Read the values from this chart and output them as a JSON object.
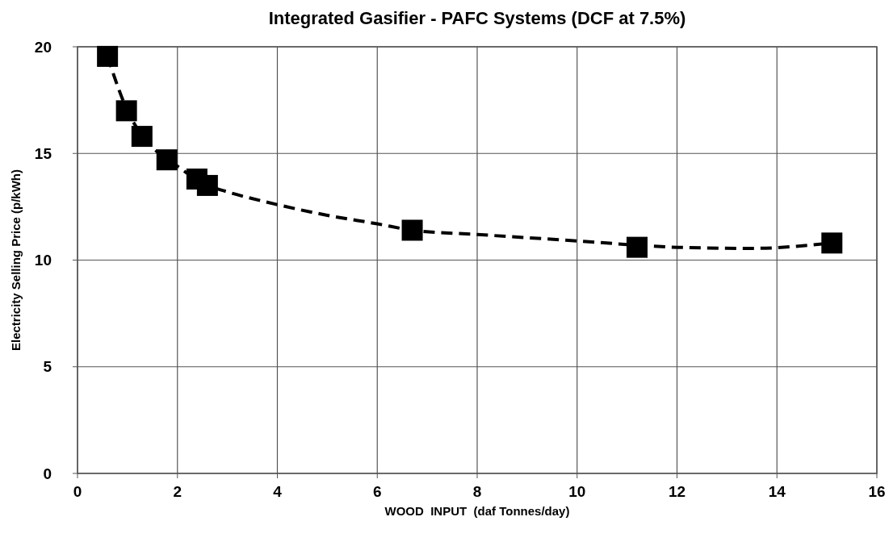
{
  "chart_data": {
    "type": "scatter",
    "title": "Integrated Gasifier - PAFC Systems (DCF at 7.5%)",
    "xlabel": "WOOD  INPUT  (daf Tonnes/day)",
    "ylabel": "Electricity Selling Price (p/kWh)",
    "xlim": [
      0,
      16
    ],
    "xticks": [
      0,
      2,
      4,
      6,
      8,
      10,
      12,
      14,
      16
    ],
    "ylim": [
      0,
      20
    ],
    "yticks": [
      0,
      5,
      10,
      15,
      20
    ],
    "grid": true,
    "series": [
      {
        "type": "line",
        "color": "#000000",
        "line_style": "dashed",
        "marker": "none",
        "x": [
          0.6,
          1.0,
          1.5,
          2.0,
          2.6,
          3.0,
          4.0,
          5.0,
          6.0,
          6.7,
          8.0,
          10.0,
          11.2,
          12.0,
          13.5,
          15.1
        ],
        "values": [
          19.55,
          17.0,
          15.3,
          14.4,
          13.5,
          13.2,
          12.6,
          12.1,
          11.7,
          11.4,
          11.2,
          10.9,
          10.7,
          10.6,
          10.55,
          10.8
        ]
      },
      {
        "color": "#000000",
        "marker": "square",
        "x": [
          0.6,
          0.98,
          1.29,
          1.79,
          2.39,
          2.6,
          6.7,
          11.2,
          15.1
        ],
        "values": [
          19.55,
          17.0,
          15.8,
          14.7,
          13.8,
          13.5,
          11.4,
          10.6,
          10.8
        ]
      }
    ]
  }
}
